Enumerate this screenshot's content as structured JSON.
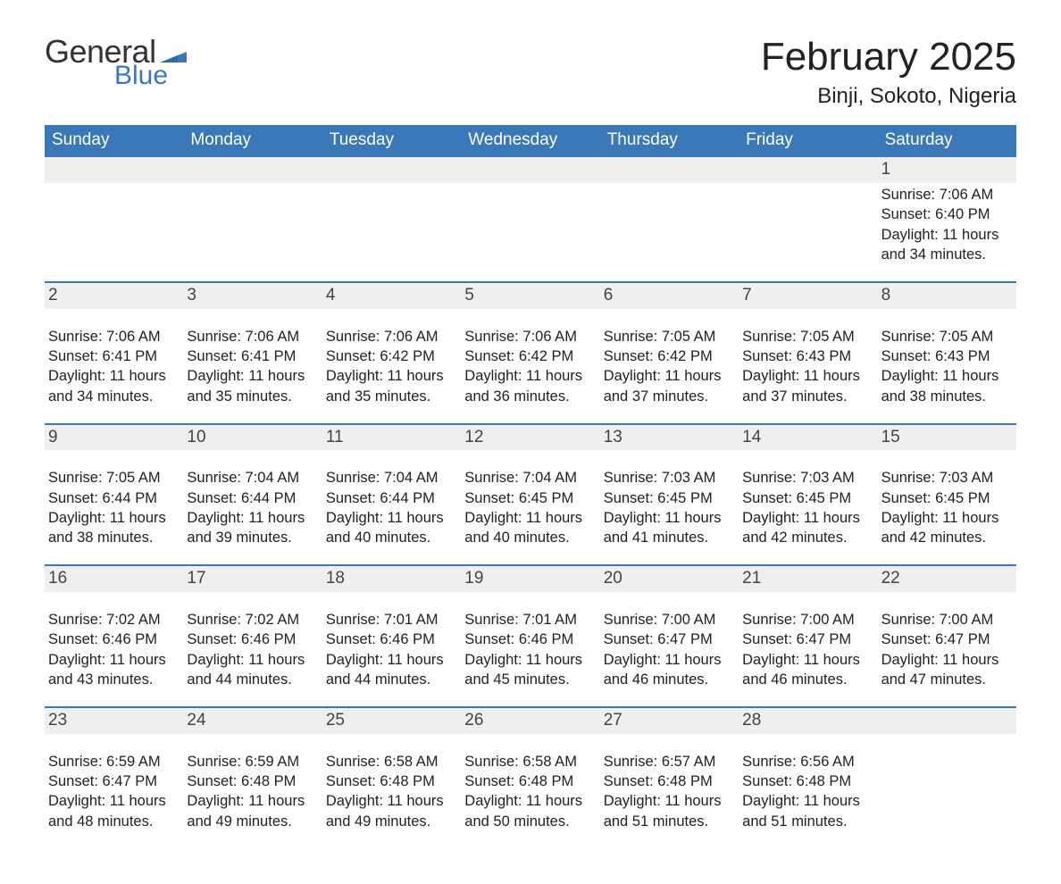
{
  "brand": {
    "word1": "General",
    "word2": "Blue",
    "text_color": "#333333",
    "accent_color": "#3b78b8",
    "flag_color": "#3b78b8"
  },
  "title": "February 2025",
  "location": "Binji, Sokoto, Nigeria",
  "colors": {
    "header_bg": "#3b78b8",
    "header_text": "#ffffff",
    "daynum_bg": "#efefef",
    "rule": "#3b78b8",
    "body_text": "#222222",
    "page_bg": "#ffffff"
  },
  "typography": {
    "title_fontsize": 44,
    "location_fontsize": 24,
    "dow_fontsize": 19,
    "daynum_fontsize": 19,
    "detail_fontsize": 16.5,
    "font_family": "Segoe UI"
  },
  "layout": {
    "columns": 7,
    "weeks": 5,
    "first_day_column_index": 6
  },
  "days_of_week": [
    "Sunday",
    "Monday",
    "Tuesday",
    "Wednesday",
    "Thursday",
    "Friday",
    "Saturday"
  ],
  "labels": {
    "sunrise": "Sunrise:",
    "sunset": "Sunset:",
    "daylight": "Daylight:"
  },
  "days": [
    {
      "n": 1,
      "sunrise": "7:06 AM",
      "sunset": "6:40 PM",
      "daylight": "11 hours and 34 minutes."
    },
    {
      "n": 2,
      "sunrise": "7:06 AM",
      "sunset": "6:41 PM",
      "daylight": "11 hours and 34 minutes."
    },
    {
      "n": 3,
      "sunrise": "7:06 AM",
      "sunset": "6:41 PM",
      "daylight": "11 hours and 35 minutes."
    },
    {
      "n": 4,
      "sunrise": "7:06 AM",
      "sunset": "6:42 PM",
      "daylight": "11 hours and 35 minutes."
    },
    {
      "n": 5,
      "sunrise": "7:06 AM",
      "sunset": "6:42 PM",
      "daylight": "11 hours and 36 minutes."
    },
    {
      "n": 6,
      "sunrise": "7:05 AM",
      "sunset": "6:42 PM",
      "daylight": "11 hours and 37 minutes."
    },
    {
      "n": 7,
      "sunrise": "7:05 AM",
      "sunset": "6:43 PM",
      "daylight": "11 hours and 37 minutes."
    },
    {
      "n": 8,
      "sunrise": "7:05 AM",
      "sunset": "6:43 PM",
      "daylight": "11 hours and 38 minutes."
    },
    {
      "n": 9,
      "sunrise": "7:05 AM",
      "sunset": "6:44 PM",
      "daylight": "11 hours and 38 minutes."
    },
    {
      "n": 10,
      "sunrise": "7:04 AM",
      "sunset": "6:44 PM",
      "daylight": "11 hours and 39 minutes."
    },
    {
      "n": 11,
      "sunrise": "7:04 AM",
      "sunset": "6:44 PM",
      "daylight": "11 hours and 40 minutes."
    },
    {
      "n": 12,
      "sunrise": "7:04 AM",
      "sunset": "6:45 PM",
      "daylight": "11 hours and 40 minutes."
    },
    {
      "n": 13,
      "sunrise": "7:03 AM",
      "sunset": "6:45 PM",
      "daylight": "11 hours and 41 minutes."
    },
    {
      "n": 14,
      "sunrise": "7:03 AM",
      "sunset": "6:45 PM",
      "daylight": "11 hours and 42 minutes."
    },
    {
      "n": 15,
      "sunrise": "7:03 AM",
      "sunset": "6:45 PM",
      "daylight": "11 hours and 42 minutes."
    },
    {
      "n": 16,
      "sunrise": "7:02 AM",
      "sunset": "6:46 PM",
      "daylight": "11 hours and 43 minutes."
    },
    {
      "n": 17,
      "sunrise": "7:02 AM",
      "sunset": "6:46 PM",
      "daylight": "11 hours and 44 minutes."
    },
    {
      "n": 18,
      "sunrise": "7:01 AM",
      "sunset": "6:46 PM",
      "daylight": "11 hours and 44 minutes."
    },
    {
      "n": 19,
      "sunrise": "7:01 AM",
      "sunset": "6:46 PM",
      "daylight": "11 hours and 45 minutes."
    },
    {
      "n": 20,
      "sunrise": "7:00 AM",
      "sunset": "6:47 PM",
      "daylight": "11 hours and 46 minutes."
    },
    {
      "n": 21,
      "sunrise": "7:00 AM",
      "sunset": "6:47 PM",
      "daylight": "11 hours and 46 minutes."
    },
    {
      "n": 22,
      "sunrise": "7:00 AM",
      "sunset": "6:47 PM",
      "daylight": "11 hours and 47 minutes."
    },
    {
      "n": 23,
      "sunrise": "6:59 AM",
      "sunset": "6:47 PM",
      "daylight": "11 hours and 48 minutes."
    },
    {
      "n": 24,
      "sunrise": "6:59 AM",
      "sunset": "6:48 PM",
      "daylight": "11 hours and 49 minutes."
    },
    {
      "n": 25,
      "sunrise": "6:58 AM",
      "sunset": "6:48 PM",
      "daylight": "11 hours and 49 minutes."
    },
    {
      "n": 26,
      "sunrise": "6:58 AM",
      "sunset": "6:48 PM",
      "daylight": "11 hours and 50 minutes."
    },
    {
      "n": 27,
      "sunrise": "6:57 AM",
      "sunset": "6:48 PM",
      "daylight": "11 hours and 51 minutes."
    },
    {
      "n": 28,
      "sunrise": "6:56 AM",
      "sunset": "6:48 PM",
      "daylight": "11 hours and 51 minutes."
    }
  ]
}
